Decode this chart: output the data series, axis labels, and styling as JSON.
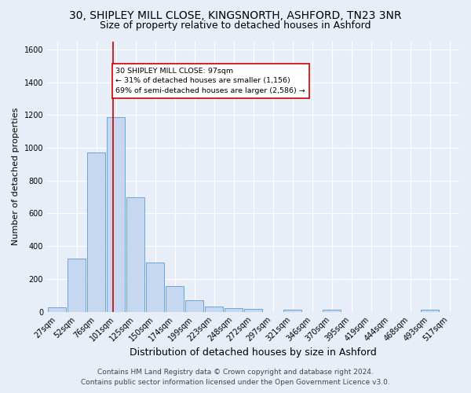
{
  "title1": "30, SHIPLEY MILL CLOSE, KINGSNORTH, ASHFORD, TN23 3NR",
  "title2": "Size of property relative to detached houses in Ashford",
  "xlabel": "Distribution of detached houses by size in Ashford",
  "ylabel": "Number of detached properties",
  "footer1": "Contains HM Land Registry data © Crown copyright and database right 2024.",
  "footer2": "Contains public sector information licensed under the Open Government Licence v3.0.",
  "bar_labels": [
    "27sqm",
    "52sqm",
    "76sqm",
    "101sqm",
    "125sqm",
    "150sqm",
    "174sqm",
    "199sqm",
    "223sqm",
    "248sqm",
    "272sqm",
    "297sqm",
    "321sqm",
    "346sqm",
    "370sqm",
    "395sqm",
    "419sqm",
    "444sqm",
    "468sqm",
    "493sqm",
    "517sqm"
  ],
  "bar_values": [
    28,
    325,
    970,
    1185,
    700,
    300,
    155,
    70,
    30,
    20,
    15,
    0,
    12,
    0,
    10,
    0,
    0,
    0,
    0,
    10,
    0
  ],
  "bar_color": "#c5d8f0",
  "bar_edge_color": "#5b9bd5",
  "vline_color": "#cc0000",
  "annotation_text": "30 SHIPLEY MILL CLOSE: 97sqm\n← 31% of detached houses are smaller (1,156)\n69% of semi-detached houses are larger (2,586) →",
  "annotation_box_color": "#ffffff",
  "annotation_box_edge": "#cc0000",
  "ylim": [
    0,
    1650
  ],
  "yticks": [
    0,
    200,
    400,
    600,
    800,
    1000,
    1200,
    1400,
    1600
  ],
  "bg_color": "#e8eef8",
  "plot_bg_color": "#e8eef8",
  "grid_color": "#ffffff",
  "title1_fontsize": 10,
  "title2_fontsize": 9,
  "xlabel_fontsize": 9,
  "ylabel_fontsize": 8,
  "tick_fontsize": 7,
  "footer_fontsize": 6.5
}
